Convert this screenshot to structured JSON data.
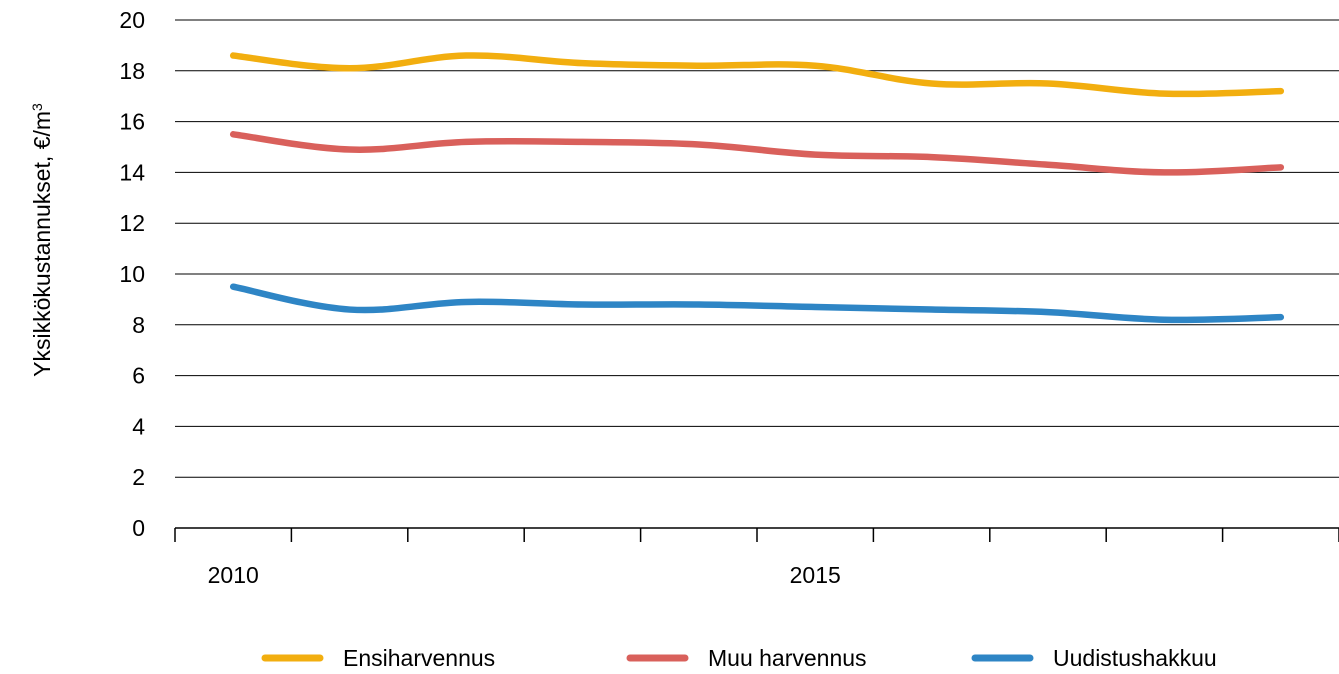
{
  "chart_data": {
    "type": "line",
    "title": "",
    "xlabel": "",
    "ylabel": "Yksikkökustannukset, €/m",
    "ylabel_superscript": "3",
    "x": [
      2010,
      2011,
      2012,
      2013,
      2014,
      2015,
      2016,
      2017,
      2018,
      2019
    ],
    "x_tick_labels": [
      {
        "x": 2010,
        "label": "2010"
      },
      {
        "x": 2015,
        "label": "2015"
      }
    ],
    "xlim": [
      2009.5,
      2019.5
    ],
    "ylim": [
      0,
      20
    ],
    "y_ticks": [
      0,
      2,
      4,
      6,
      8,
      10,
      12,
      14,
      16,
      18,
      20
    ],
    "grid": true,
    "legend_position": "bottom",
    "series": [
      {
        "name": "Ensiharvennus",
        "color": "#F2AE0F",
        "values": [
          18.6,
          18.1,
          18.6,
          18.3,
          18.2,
          18.2,
          17.5,
          17.5,
          17.1,
          17.2
        ]
      },
      {
        "name": "Muu harvennus",
        "color": "#D9605B",
        "values": [
          15.5,
          14.9,
          15.2,
          15.2,
          15.1,
          14.7,
          14.6,
          14.3,
          14.0,
          14.2
        ]
      },
      {
        "name": "Uudistushakkuu",
        "color": "#2E85C5",
        "values": [
          9.5,
          8.6,
          8.9,
          8.8,
          8.8,
          8.7,
          8.6,
          8.5,
          8.2,
          8.3
        ]
      }
    ]
  }
}
